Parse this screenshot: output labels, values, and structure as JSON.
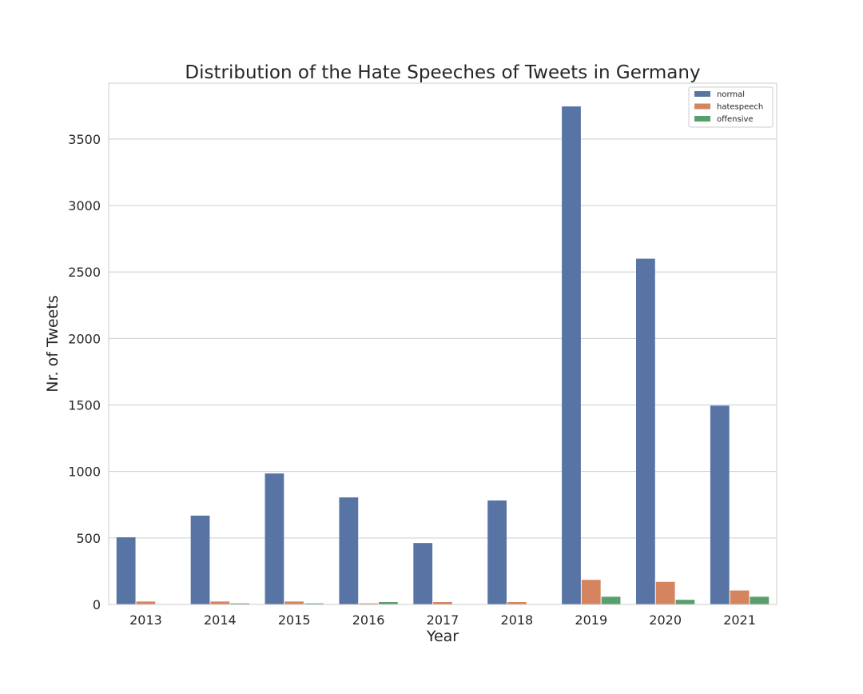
{
  "chart_data": {
    "type": "bar",
    "title": "Distribution of the Hate Speeches of Tweets in Germany",
    "xlabel": "Year",
    "ylabel": "Nr. of Tweets",
    "categories": [
      "2013",
      "2014",
      "2015",
      "2016",
      "2017",
      "2018",
      "2019",
      "2020",
      "2021"
    ],
    "ylim": [
      0,
      3920
    ],
    "yticks": [
      0,
      500,
      1000,
      1500,
      2000,
      2500,
      3000,
      3500
    ],
    "grid": true,
    "legend_position": "top-right",
    "series": [
      {
        "name": "normal",
        "color": "#5874a5",
        "values": [
          505,
          668,
          985,
          805,
          462,
          782,
          3745,
          2600,
          1495
        ]
      },
      {
        "name": "hatespeech",
        "color": "#d4845e",
        "values": [
          22,
          22,
          22,
          8,
          18,
          18,
          185,
          170,
          105
        ]
      },
      {
        "name": "offensive",
        "color": "#5a9e6d",
        "values": [
          0,
          8,
          8,
          18,
          0,
          0,
          58,
          35,
          58
        ]
      }
    ]
  }
}
